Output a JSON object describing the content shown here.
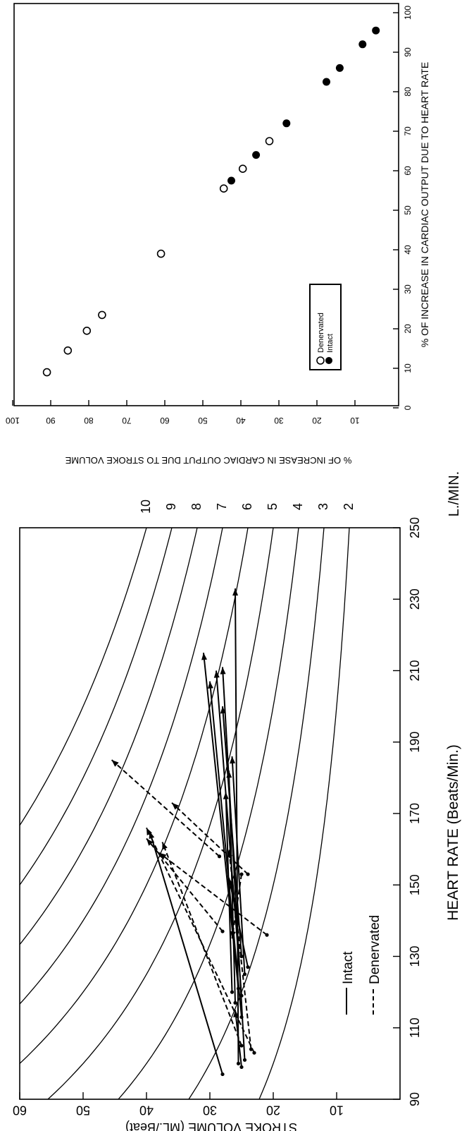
{
  "chart_data": [
    {
      "type": "scatter",
      "title": "",
      "xlabel": "% OF INCREASE IN CARDIAC OUTPUT DUE TO HEART RATE",
      "ylabel": "% OF INCREASE IN CARDIAC OUTPUT DUE TO STROKE VOLUME",
      "xlim": [
        0,
        100
      ],
      "ylim": [
        0,
        100
      ],
      "x_ticks": [
        "0",
        "10",
        "20",
        "30",
        "40",
        "50",
        "60",
        "70",
        "80",
        "90",
        "100"
      ],
      "y_ticks": [
        "10",
        "20",
        "30",
        "40",
        "50",
        "60",
        "70",
        "80",
        "90",
        "100"
      ],
      "legend": {
        "position": "lower-left",
        "entries": [
          "Intact",
          "Denervated"
        ]
      },
      "series": [
        {
          "name": "Intact",
          "marker": "filled-circle",
          "points": [
            [
              57.5,
              42.5
            ],
            [
              64,
              36
            ],
            [
              72,
              28
            ],
            [
              82.5,
              17.5
            ],
            [
              86,
              14
            ],
            [
              92,
              8
            ],
            [
              95.5,
              4.5
            ]
          ]
        },
        {
          "name": "Denervated",
          "marker": "open-circle",
          "points": [
            [
              9,
              91
            ],
            [
              14.5,
              85.5
            ],
            [
              19.5,
              80.5
            ],
            [
              23.5,
              76.5
            ],
            [
              39,
              61
            ],
            [
              55.5,
              44.5
            ],
            [
              60.5,
              39.5
            ],
            [
              67.5,
              32.5
            ]
          ]
        }
      ]
    },
    {
      "type": "line",
      "title": "",
      "xlabel": "HEART RATE (Beats/Min.)",
      "ylabel": "STROKE VOLUME (ML./Beat)",
      "xlim": [
        90,
        250
      ],
      "ylim": [
        0,
        60
      ],
      "x_ticks": [
        "90",
        "110",
        "130",
        "150",
        "170",
        "190",
        "210",
        "230",
        "250"
      ],
      "y_ticks": [
        "10",
        "20",
        "30",
        "40",
        "50",
        "60"
      ],
      "isopleth_unit": "L./MIN.",
      "isopleth_labels": [
        "2",
        "3",
        "4",
        "5",
        "6",
        "7",
        "8",
        "9",
        "10"
      ],
      "isopleths_l_per_min": [
        2,
        3,
        4,
        5,
        6,
        7,
        8,
        9,
        10
      ],
      "legend": {
        "position": "lower-left",
        "entries": [
          "Intact",
          "Denervated"
        ]
      },
      "series": [
        {
          "name": "Intact",
          "style": "solid",
          "segments": [
            [
              [
                99,
                25
              ],
              [
                115,
                26
              ]
            ],
            [
              [
                100,
                25.5
              ],
              [
                233,
                26
              ]
            ],
            [
              [
                101,
                24.5
              ],
              [
                211,
                28
              ]
            ],
            [
              [
                97,
                28
              ],
              [
                165,
                39.5
              ]
            ],
            [
              [
                113,
                25
              ],
              [
                207,
                30
              ]
            ],
            [
              [
                117,
                26
              ],
              [
                182,
                27
              ]
            ],
            [
              [
                119,
                25
              ],
              [
                210,
                29
              ]
            ],
            [
              [
                120,
                26.5
              ],
              [
                176,
                27.5
              ]
            ],
            [
              [
                121,
                25.5
              ],
              [
                215,
                31
              ]
            ],
            [
              [
                125,
                24.5
              ],
              [
                186,
                26.5
              ]
            ],
            [
              [
                127,
                24
              ],
              [
                152,
                27
              ]
            ],
            [
              [
                130,
                25
              ],
              [
                200,
                28
              ]
            ]
          ]
        },
        {
          "name": "Denervated",
          "style": "dashed",
          "segments": [
            [
              [
                103,
                23
              ],
              [
                166,
                40
              ]
            ],
            [
              [
                105,
                25
              ],
              [
                162,
                37.5
              ]
            ],
            [
              [
                104,
                23.5
              ],
              [
                160,
                27
              ]
            ],
            [
              [
                136,
                21
              ],
              [
                159,
                38
              ]
            ],
            [
              [
                158,
                28.5
              ],
              [
                185,
                45.5
              ]
            ],
            [
              [
                153,
                24
              ],
              [
                173,
                36
              ]
            ],
            [
              [
                153,
                25
              ],
              [
                135,
                26.5
              ]
            ],
            [
              [
                137,
                28
              ],
              [
                163,
                40
              ]
            ]
          ]
        }
      ]
    }
  ]
}
